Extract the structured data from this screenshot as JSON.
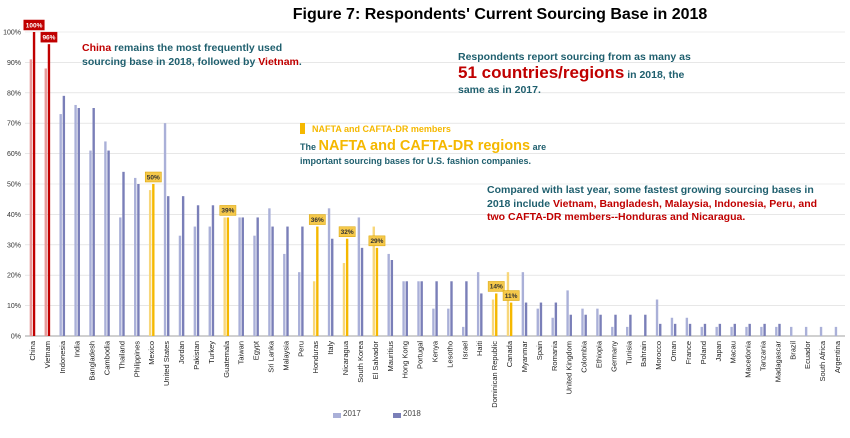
{
  "title": "Figure 7: Respondents' Current Sourcing Base in 2018",
  "annotations": {
    "china_pre": "China",
    "china_post": " remains the most frequently used sourcing base in 2018, followed by ",
    "china_vietnam": "Vietnam",
    "china_end": ".",
    "countries_pre": "Respondents report sourcing from as many as ",
    "countries_num": "51 countries/regions",
    "countries_post": " in 2018, the same as in 2017.",
    "nafta_legend": "NAFTA and CAFTA-DR members",
    "nafta_pre": "The ",
    "nafta_big": "NAFTA and CAFTA-DR regions",
    "nafta_post": " are important sourcing bases for U.S. fashion companies.",
    "growth_pre": "Compared with last year, some fastest growing sourcing bases in 2018 include ",
    "growth_red": "Vietnam, Bangladesh, Malaysia, Indonesia, Peru, and two CAFTA-DR members--Honduras and Nicaragua."
  },
  "colors": {
    "y2017": "#aab0d8",
    "y2018": "#7a7fb8",
    "highlight_2017": "#f8d77a",
    "highlight_2018": "#f5b800",
    "top_2017": "#e89a9a",
    "top_2018": "#c00000",
    "text_teal": "#1f5f6e",
    "text_red": "#c00000"
  },
  "chart_data": {
    "type": "bar",
    "ylim": [
      0,
      100
    ],
    "yticks": [
      "0%",
      "10%",
      "20%",
      "30%",
      "40%",
      "50%",
      "60%",
      "70%",
      "80%",
      "90%",
      "100%"
    ],
    "categories": [
      "China",
      "Vietnam",
      "Indonesia",
      "India",
      "Bangladesh",
      "Cambodia",
      "Thailand",
      "Philippines",
      "Mexico",
      "United States",
      "Jordan",
      "Pakistan",
      "Turkey",
      "Guatemala",
      "Taiwan",
      "Egypt",
      "Sri Lanka",
      "Malaysia",
      "Peru",
      "Honduras",
      "Italy",
      "Nicaragua",
      "South Korea",
      "El Salvador",
      "Mauritius",
      "Hong Kong",
      "Portugal",
      "Kenya",
      "Lesotho",
      "Israel",
      "Haiti",
      "Dominican Republic",
      "Canada",
      "Myanmar",
      "Spain",
      "Romania",
      "United Kingdom",
      "Colombia",
      "Ethiopia",
      "Germany",
      "Tunisia",
      "Bahrain",
      "Morocco",
      "Oman",
      "France",
      "Poland",
      "Japan",
      "Macau",
      "Macedonia",
      "Tanzania",
      "Madagascar",
      "Brazil",
      "Ecuador",
      "South Africa",
      "Argentina"
    ],
    "series": [
      {
        "name": "2017",
        "values": [
          91,
          88,
          73,
          76,
          61,
          64,
          39,
          52,
          48,
          70,
          33,
          36,
          36,
          39,
          39,
          33,
          42,
          27,
          21,
          18,
          42,
          24,
          39,
          36,
          27,
          18,
          18,
          9,
          9,
          3,
          21,
          12,
          21,
          21,
          9,
          6,
          15,
          9,
          9,
          3,
          3,
          0,
          12,
          6,
          6,
          3,
          3,
          3,
          3,
          3,
          3,
          3,
          3,
          3,
          3
        ]
      },
      {
        "name": "2018",
        "values": [
          100,
          96,
          79,
          75,
          75,
          61,
          54,
          50,
          50,
          46,
          46,
          43,
          43,
          39,
          39,
          39,
          36,
          36,
          36,
          36,
          32,
          32,
          29,
          29,
          25,
          18,
          18,
          18,
          18,
          18,
          14,
          14,
          11,
          11,
          11,
          11,
          7,
          7,
          7,
          7,
          7,
          7,
          4,
          4,
          4,
          4,
          4,
          4,
          4,
          4,
          4,
          0,
          0,
          0,
          0
        ]
      }
    ],
    "highlight": [
      "Mexico",
      "Guatemala",
      "Honduras",
      "Nicaragua",
      "El Salvador",
      "Dominican Republic",
      "Canada"
    ],
    "top": [
      "China",
      "Vietnam"
    ],
    "data_labels": [
      {
        "category": "China",
        "text": "100%"
      },
      {
        "category": "Vietnam",
        "text": "96%"
      },
      {
        "category": "Mexico",
        "text": "50%"
      },
      {
        "category": "Guatemala",
        "text": "39%"
      },
      {
        "category": "Honduras",
        "text": "36%"
      },
      {
        "category": "Nicaragua",
        "text": "32%"
      },
      {
        "category": "El Salvador",
        "text": "29%"
      },
      {
        "category": "Dominican Republic",
        "text": "14%"
      },
      {
        "category": "Canada",
        "text": "11%"
      }
    ],
    "grid": true,
    "legend_position": "bottom-center"
  }
}
